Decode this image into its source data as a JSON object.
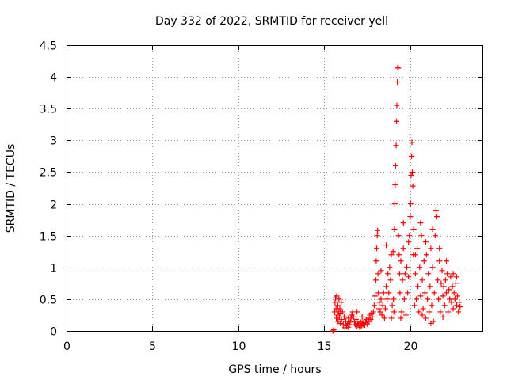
{
  "chart_data": {
    "type": "scatter",
    "title": "Day 332 of 2022, SRMTID for receiver yell",
    "xlabel": "GPS time / hours",
    "ylabel": "SRMTID / TECUs",
    "xlim": [
      0,
      24.2
    ],
    "ylim": [
      0,
      4.5
    ],
    "x_ticks": [
      0,
      5,
      10,
      15,
      20
    ],
    "x_tick_labels": [
      "0",
      "5",
      "10",
      "15",
      "20"
    ],
    "y_ticks": [
      0,
      0.5,
      1,
      1.5,
      2,
      2.5,
      3,
      3.5,
      4,
      4.5
    ],
    "y_tick_labels": [
      "0",
      "0.5",
      "1",
      "1.5",
      "2",
      "2.5",
      "3",
      "3.5",
      "4",
      "4.5"
    ],
    "grid": true,
    "marker": "+",
    "color": "#ff0000",
    "series": [
      {
        "name": "SRMTID",
        "points": [
          [
            15.5,
            0.0
          ],
          [
            15.55,
            0.02
          ],
          [
            15.6,
            0.3
          ],
          [
            15.62,
            0.45
          ],
          [
            15.65,
            0.52
          ],
          [
            15.68,
            0.35
          ],
          [
            15.7,
            0.2
          ],
          [
            15.72,
            0.55
          ],
          [
            15.75,
            0.25
          ],
          [
            15.78,
            0.4
          ],
          [
            15.8,
            0.15
          ],
          [
            15.82,
            0.3
          ],
          [
            15.85,
            0.5
          ],
          [
            15.88,
            0.22
          ],
          [
            15.9,
            0.35
          ],
          [
            15.92,
            0.12
          ],
          [
            15.95,
            0.28
          ],
          [
            15.98,
            0.45
          ],
          [
            16.0,
            0.18
          ],
          [
            16.05,
            0.3
          ],
          [
            16.1,
            0.1
          ],
          [
            16.15,
            0.22
          ],
          [
            16.2,
            0.05
          ],
          [
            16.25,
            0.15
          ],
          [
            16.3,
            0.08
          ],
          [
            16.35,
            0.12
          ],
          [
            16.4,
            0.06
          ],
          [
            16.45,
            0.1
          ],
          [
            16.5,
            0.14
          ],
          [
            16.55,
            0.2
          ],
          [
            16.6,
            0.25
          ],
          [
            16.65,
            0.3
          ],
          [
            16.7,
            0.22
          ],
          [
            16.75,
            0.15
          ],
          [
            16.8,
            0.1
          ],
          [
            16.85,
            0.18
          ],
          [
            16.9,
            0.08
          ],
          [
            16.95,
            0.12
          ],
          [
            17.0,
            0.1
          ],
          [
            17.05,
            0.06
          ],
          [
            17.1,
            0.14
          ],
          [
            17.15,
            0.08
          ],
          [
            17.2,
            0.12
          ],
          [
            17.25,
            0.1
          ],
          [
            17.3,
            0.16
          ],
          [
            17.35,
            0.09
          ],
          [
            17.4,
            0.13
          ],
          [
            17.45,
            0.18
          ],
          [
            17.5,
            0.11
          ],
          [
            17.55,
            0.2
          ],
          [
            17.6,
            0.15
          ],
          [
            17.65,
            0.25
          ],
          [
            17.7,
            0.18
          ],
          [
            17.75,
            0.28
          ],
          [
            17.8,
            0.22
          ],
          [
            17.85,
            0.3
          ],
          [
            17.9,
            0.4
          ],
          [
            17.95,
            0.55
          ],
          [
            18.0,
            0.8
          ],
          [
            18.02,
            1.1
          ],
          [
            18.05,
            1.3
          ],
          [
            18.08,
            1.5
          ],
          [
            18.1,
            1.58
          ],
          [
            18.12,
            0.9
          ],
          [
            18.15,
            0.6
          ],
          [
            18.18,
            0.35
          ],
          [
            18.2,
            0.45
          ],
          [
            18.25,
            0.3
          ],
          [
            18.3,
            0.5
          ],
          [
            18.35,
            0.25
          ],
          [
            18.4,
            0.4
          ],
          [
            18.45,
            0.6
          ],
          [
            18.5,
            0.2
          ],
          [
            18.55,
            0.35
          ],
          [
            18.6,
            0.7
          ],
          [
            18.65,
            0.5
          ],
          [
            18.7,
            0.9
          ],
          [
            18.75,
            0.6
          ],
          [
            18.8,
            1.0
          ],
          [
            18.85,
            0.8
          ],
          [
            18.9,
            1.2
          ],
          [
            18.95,
            0.4
          ],
          [
            19.0,
            1.25
          ],
          [
            19.02,
            0.5
          ],
          [
            19.05,
            0.3
          ],
          [
            19.08,
            1.6
          ],
          [
            19.1,
            2.0
          ],
          [
            19.12,
            2.3
          ],
          [
            19.15,
            2.6
          ],
          [
            19.18,
            2.92
          ],
          [
            19.2,
            3.3
          ],
          [
            19.22,
            3.55
          ],
          [
            19.25,
            3.92
          ],
          [
            19.27,
            4.15
          ],
          [
            19.3,
            4.14
          ],
          [
            19.32,
            1.5
          ],
          [
            19.35,
            1.2
          ],
          [
            19.38,
            0.9
          ],
          [
            19.4,
            0.6
          ],
          [
            19.45,
            1.1
          ],
          [
            19.5,
            0.3
          ],
          [
            19.55,
            0.8
          ],
          [
            19.6,
            1.3
          ],
          [
            19.65,
            0.5
          ],
          [
            19.7,
            0.9
          ],
          [
            19.75,
            0.25
          ],
          [
            19.8,
            1.0
          ],
          [
            19.85,
            0.6
          ],
          [
            19.9,
            0.85
          ],
          [
            19.95,
            1.5
          ],
          [
            20.0,
            1.8
          ],
          [
            20.02,
            2.0
          ],
          [
            20.05,
            2.45
          ],
          [
            20.08,
            2.75
          ],
          [
            20.1,
            2.97
          ],
          [
            20.12,
            2.5
          ],
          [
            20.15,
            2.28
          ],
          [
            20.18,
            1.2
          ],
          [
            20.2,
            1.6
          ],
          [
            20.25,
            0.4
          ],
          [
            20.3,
            0.9
          ],
          [
            20.35,
            0.5
          ],
          [
            20.4,
            1.3
          ],
          [
            20.45,
            0.7
          ],
          [
            20.5,
            0.3
          ],
          [
            20.55,
            1.0
          ],
          [
            20.6,
            0.55
          ],
          [
            20.65,
            1.5
          ],
          [
            20.7,
            0.8
          ],
          [
            20.75,
            0.35
          ],
          [
            20.8,
            1.1
          ],
          [
            20.85,
            0.6
          ],
          [
            20.9,
            0.2
          ],
          [
            20.95,
            1.2
          ],
          [
            21.0,
            0.5
          ],
          [
            21.05,
            0.9
          ],
          [
            21.1,
            0.3
          ],
          [
            21.15,
            0.7
          ],
          [
            21.2,
            1.3
          ],
          [
            21.25,
            0.4
          ],
          [
            21.3,
            1.0
          ],
          [
            21.35,
            0.15
          ],
          [
            21.4,
            0.6
          ],
          [
            21.45,
            1.5
          ],
          [
            21.5,
            1.9
          ],
          [
            21.55,
            1.8
          ],
          [
            21.6,
            0.8
          ],
          [
            21.65,
            0.5
          ],
          [
            21.7,
            1.1
          ],
          [
            21.75,
            0.3
          ],
          [
            21.8,
            0.75
          ],
          [
            21.85,
            0.95
          ],
          [
            21.9,
            0.55
          ],
          [
            21.95,
            0.7
          ],
          [
            22.0,
            0.4
          ],
          [
            22.05,
            0.8
          ],
          [
            22.1,
            0.6
          ],
          [
            22.15,
            0.9
          ],
          [
            22.2,
            0.3
          ],
          [
            22.25,
            0.65
          ],
          [
            22.3,
            0.5
          ],
          [
            22.35,
            0.85
          ],
          [
            22.4,
            0.45
          ],
          [
            22.45,
            0.7
          ],
          [
            22.5,
            0.35
          ],
          [
            22.55,
            0.6
          ],
          [
            22.6,
            0.5
          ],
          [
            22.65,
            0.75
          ],
          [
            22.7,
            0.4
          ],
          [
            22.75,
            0.55
          ],
          [
            22.8,
            0.3
          ],
          [
            22.85,
            0.45
          ],
          [
            22.9,
            0.38
          ],
          [
            18.3,
            0.95
          ],
          [
            18.6,
            1.35
          ],
          [
            18.9,
            0.2
          ],
          [
            19.6,
            1.7
          ],
          [
            19.9,
            1.4
          ],
          [
            20.3,
            1.2
          ],
          [
            20.6,
            1.7
          ],
          [
            20.9,
            1.4
          ],
          [
            21.3,
            1.6
          ],
          [
            21.7,
            1.3
          ],
          [
            22.1,
            1.1
          ],
          [
            22.5,
            0.9
          ],
          [
            17.2,
            0.22
          ],
          [
            16.9,
            0.3
          ],
          [
            16.4,
            0.2
          ],
          [
            19.45,
            0.2
          ],
          [
            20.7,
            0.25
          ],
          [
            21.2,
            0.12
          ],
          [
            21.9,
            0.22
          ],
          [
            22.7,
            0.85
          ]
        ]
      }
    ]
  }
}
